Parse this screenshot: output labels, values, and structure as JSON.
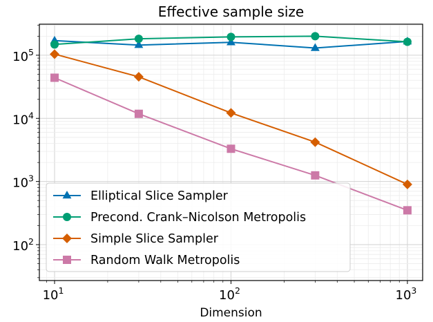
{
  "chart_data": {
    "type": "line",
    "title": "Effective sample size",
    "xlabel": "Dimension",
    "ylabel": "",
    "xscale": "log",
    "yscale": "log",
    "xlim": [
      8.2,
      1220
    ],
    "ylim": [
      27,
      310000
    ],
    "x": [
      10,
      30,
      100,
      300,
      1000
    ],
    "x_ticks": [
      {
        "value": 10,
        "base": "10",
        "exp": "1"
      },
      {
        "value": 100,
        "base": "10",
        "exp": "2"
      },
      {
        "value": 1000,
        "base": "10",
        "exp": "3"
      }
    ],
    "y_ticks": [
      {
        "value": 100,
        "base": "10",
        "exp": "2"
      },
      {
        "value": 1000,
        "base": "10",
        "exp": "3"
      },
      {
        "value": 10000,
        "base": "10",
        "exp": "4"
      },
      {
        "value": 100000,
        "base": "10",
        "exp": "5"
      }
    ],
    "grid": true,
    "legend_position": "lower-left",
    "series": [
      {
        "name": "Elliptical Slice Sampler",
        "color": "#0072b2",
        "marker": "triangle",
        "values": [
          170000,
          145000,
          160000,
          130000,
          165000
        ]
      },
      {
        "name": "Precond. Crank–Nicolson Metropolis",
        "color": "#009e73",
        "marker": "circle",
        "values": [
          148000,
          182000,
          195000,
          200000,
          163000
        ]
      },
      {
        "name": "Simple Slice Sampler",
        "color": "#d55e00",
        "marker": "diamond",
        "values": [
          104000,
          45500,
          12200,
          4200,
          900
        ]
      },
      {
        "name": "Random Walk Metropolis",
        "color": "#cc79a7",
        "marker": "square",
        "values": [
          44000,
          11800,
          3300,
          1250,
          350
        ]
      }
    ]
  }
}
